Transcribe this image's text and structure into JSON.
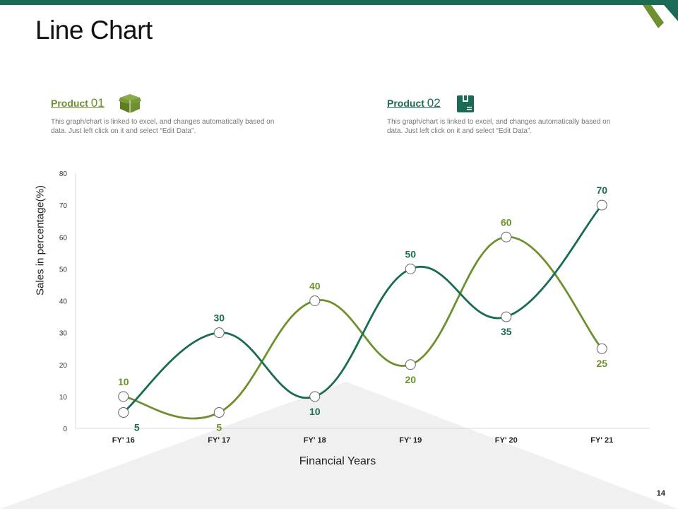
{
  "page": {
    "title": "Line Chart",
    "page_number": "14"
  },
  "products": [
    {
      "label": "Product",
      "number": "01",
      "description": "This graph/chart is linked to excel, and changes automatically based on data. Just left click on it and select “Edit Data”.",
      "color": "#6e902f",
      "icon": "open-box-icon"
    },
    {
      "label": "Product",
      "number": "02",
      "description": "This graph/chart is linked to excel, and changes automatically based on data. Just left click on it and select “Edit Data”.",
      "color": "#1a6b55",
      "icon": "package-icon"
    }
  ],
  "chart_data": {
    "type": "line",
    "smooth": true,
    "categories": [
      "FY' 16",
      "FY' 17",
      "FY' 18",
      "FY' 19",
      "FY' 20",
      "FY' 21"
    ],
    "series": [
      {
        "values": [
          10,
          5,
          40,
          20,
          60,
          25
        ],
        "color": "#6e902f"
      },
      {
        "values": [
          5,
          30,
          10,
          50,
          35,
          70
        ],
        "color": "#1a6b55"
      }
    ],
    "ylim": [
      0,
      80
    ],
    "yticks": [
      0,
      10,
      20,
      30,
      40,
      50,
      60,
      70,
      80
    ],
    "xlabel": "Financial Years",
    "ylabel": "Sales in percentage(%)",
    "grid": false,
    "legend": "none",
    "data_labels": true
  }
}
